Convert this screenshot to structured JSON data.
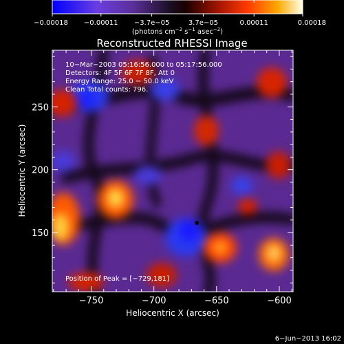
{
  "chart_data": {
    "type": "heatmap",
    "title": "Reconstructed RHESSI Image",
    "xlabel": "Heliocentric X (arcsec)",
    "ylabel": "Heliocentric Y (arcsec)",
    "xlim": [
      -781,
      -589
    ],
    "ylim": [
      103,
      295
    ],
    "x_ticks": [
      -750,
      -700,
      -650,
      -600
    ],
    "x_tick_labels": [
      "−750",
      "−700",
      "−650",
      "−600"
    ],
    "y_ticks": [
      150,
      200,
      250
    ],
    "y_tick_labels": [
      "150",
      "200",
      "250"
    ],
    "colorbar": {
      "range": [
        -0.00018,
        0.00018
      ],
      "ticks": [
        -0.00018,
        -0.00011,
        -3.7e-05,
        3.7e-05,
        0.00011,
        0.00018
      ],
      "tick_labels": [
        "−0.00018",
        "−0.00011",
        "−3.7e−05",
        "3.7e−05",
        "0.00011",
        "0.00018"
      ],
      "colors": [
        "#0000ff",
        "#7a3cc8",
        "#2a1a3a",
        "#000000",
        "#8a1000",
        "#ff3000",
        "#ff9a00",
        "#ffffff"
      ]
    },
    "info_lines": [
      "10−Mar−2003 05:16:56.000 to 05:17:56.000",
      "Detectors: 4F 5F 6F 7F 8F, Att 0",
      "Energy Range: 25.0 − 50.0 keV",
      "Clean    Total counts: 796."
    ],
    "peak": {
      "x": -729,
      "y": 181
    },
    "peak_text": "Position of Peak = [−729,181]",
    "grid": false,
    "legend": "none"
  },
  "colorbar_units_pre": "(photons cm",
  "colorbar_units_sup1": "−2",
  "colorbar_units_mid": " s",
  "colorbar_units_sup2": "−1",
  "colorbar_units_mid2": " asec",
  "colorbar_units_sup3": "−2",
  "colorbar_units_post": ")",
  "footer_date": "6−Jun−2013 16:02"
}
